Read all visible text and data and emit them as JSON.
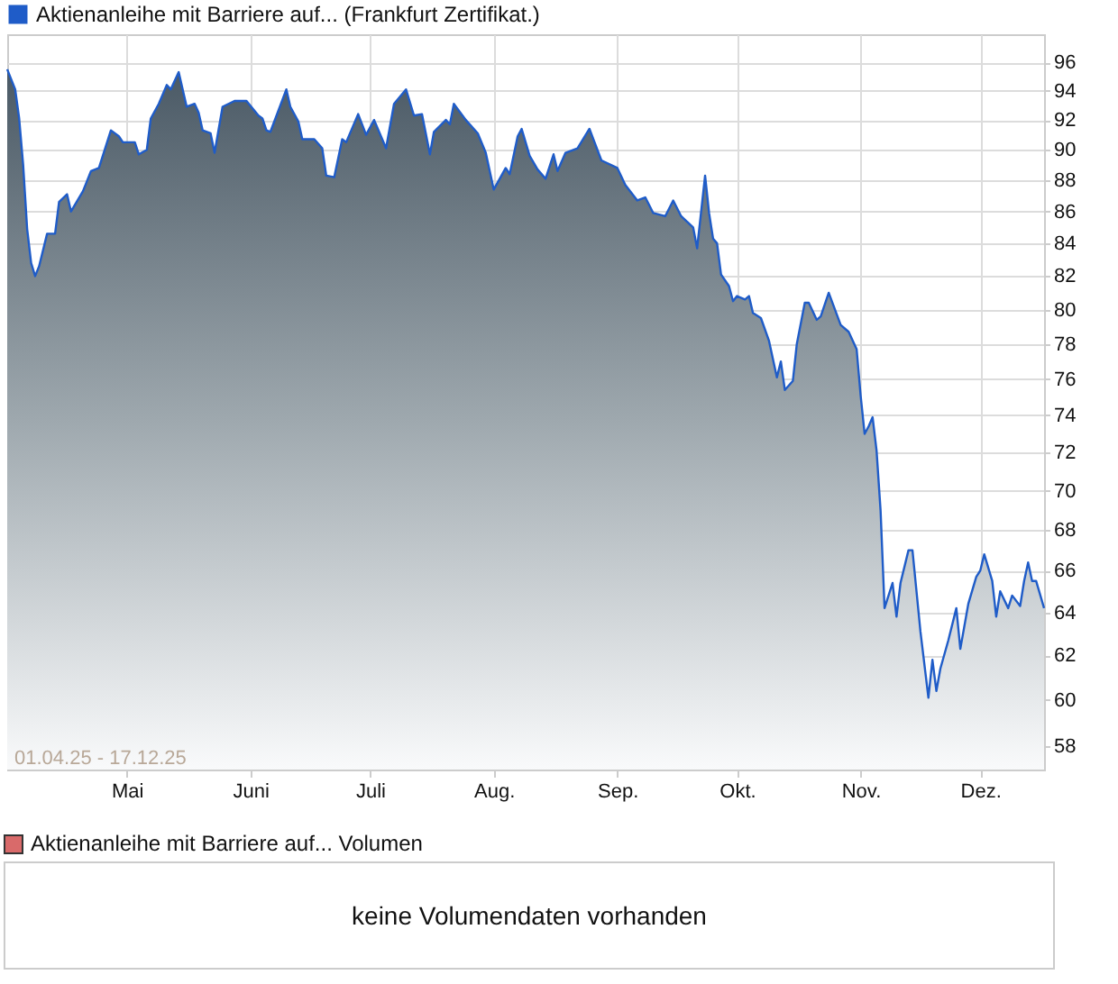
{
  "chart_data": [
    {
      "type": "area",
      "x": [
        "--04-01",
        "--04-03",
        "--04-04",
        "--04-05",
        "--04-06",
        "--04-07",
        "--04-08",
        "--04-09",
        "--04-11",
        "--04-13",
        "--04-14",
        "--04-16",
        "--04-17",
        "--04-20",
        "--04-22",
        "--04-24",
        "--04-27",
        "--04-29",
        "--04-30",
        "--05-03",
        "--05-04",
        "--05-06",
        "--05-07",
        "--05-09",
        "--05-11",
        "--05-12",
        "--05-14",
        "--05-16",
        "--05-18",
        "--05-19",
        "--05-20",
        "--05-22",
        "--05-23",
        "--05-25",
        "--05-28",
        "--05-31",
        "--06-03",
        "--06-04",
        "--06-05",
        "--06-06",
        "--06-10",
        "--06-11",
        "--06-13",
        "--06-14",
        "--06-17",
        "--06-19",
        "--06-20",
        "--06-22",
        "--06-24",
        "--06-25",
        "--06-28",
        "--06-30",
        "--07-02",
        "--07-05",
        "--07-07",
        "--07-10",
        "--07-12",
        "--07-14",
        "--07-16",
        "--07-17",
        "--07-20",
        "--07-21",
        "--07-22",
        "--07-25",
        "--07-28",
        "--07-30",
        "--08-01",
        "--08-04",
        "--08-05",
        "--08-07",
        "--08-08",
        "--08-10",
        "--08-12",
        "--08-14",
        "--08-16",
        "--08-17",
        "--08-19",
        "--08-22",
        "--08-25",
        "--08-26",
        "--08-28",
        "--09-01",
        "--09-03",
        "--09-06",
        "--09-08",
        "--09-10",
        "--09-13",
        "--09-15",
        "--09-17",
        "--09-20",
        "--09-21",
        "--09-23",
        "--09-24",
        "--09-25",
        "--09-26",
        "--09-27",
        "--09-29",
        "--09-30",
        "--10-01",
        "--10-03",
        "--10-04",
        "--10-05",
        "--10-07",
        "--10-09",
        "--10-11",
        "--10-12",
        "--10-13",
        "--10-15",
        "--10-16",
        "--10-18",
        "--10-19",
        "--10-21",
        "--10-22",
        "--10-24",
        "--10-27",
        "--10-29",
        "--10-31",
        "--11-01",
        "--11-02",
        "--11-03",
        "--11-04",
        "--11-05",
        "--11-06",
        "--11-07",
        "--11-08",
        "--11-09",
        "--11-10",
        "--11-11",
        "--11-13",
        "--11-14",
        "--11-16",
        "--11-18",
        "--11-19",
        "--11-20",
        "--11-21",
        "--11-23",
        "--11-25",
        "--11-26",
        "--11-28",
        "--11-30",
        "--12-01",
        "--12-02",
        "--12-04",
        "--12-05",
        "--12-06",
        "--12-08",
        "--12-09",
        "--12-11",
        "--12-12",
        "--12-13",
        "--12-14",
        "--12-15",
        "--12-17"
      ],
      "series": [
        {
          "name": "Aktienanleihe mit Barriere auf... (Frankfurt Zertifikat.)",
          "color": "#1f5cc8",
          "values": [
            95.5,
            94.1,
            92.1,
            89.0,
            84.9,
            82.8,
            82.0,
            82.6,
            84.6,
            84.6,
            86.6,
            87.1,
            86.0,
            87.3,
            88.6,
            88.8,
            91.3,
            90.9,
            90.5,
            90.5,
            89.7,
            90.0,
            92.1,
            93.1,
            94.4,
            94.1,
            95.3,
            92.9,
            93.1,
            92.5,
            91.3,
            91.1,
            89.8,
            92.9,
            93.3,
            93.3,
            92.3,
            92.1,
            91.3,
            91.2,
            94.1,
            92.9,
            91.9,
            90.7,
            90.7,
            90.1,
            88.3,
            88.2,
            90.7,
            90.5,
            92.4,
            91.0,
            92.0,
            90.1,
            93.1,
            94.1,
            92.3,
            92.4,
            89.7,
            91.2,
            92.0,
            91.7,
            93.1,
            92.0,
            91.1,
            89.8,
            87.4,
            88.8,
            88.4,
            90.9,
            91.4,
            89.6,
            88.7,
            88.1,
            89.7,
            88.6,
            89.8,
            90.1,
            91.4,
            90.7,
            89.3,
            88.8,
            87.7,
            86.7,
            86.9,
            85.9,
            85.7,
            86.7,
            85.7,
            85.0,
            83.7,
            88.3,
            85.9,
            84.3,
            84.0,
            82.1,
            81.4,
            80.5,
            80.8,
            80.6,
            80.8,
            79.8,
            79.5,
            78.2,
            76.1,
            77.0,
            75.4,
            75.9,
            78.0,
            80.4,
            80.4,
            79.4,
            79.6,
            81.0,
            79.1,
            78.7,
            77.7,
            75.1,
            73.0,
            73.4,
            73.9,
            72.1,
            69.0,
            64.2,
            64.8,
            65.4,
            63.8,
            65.4,
            67.0,
            67.0,
            63.1,
            60.1,
            61.8,
            60.4,
            61.4,
            62.7,
            64.2,
            62.3,
            64.4,
            65.7,
            66.0,
            66.8,
            65.5,
            63.8,
            65.0,
            64.2,
            64.8,
            64.3,
            65.5,
            66.4,
            65.5,
            65.5,
            64.2
          ]
        }
      ],
      "xlim": [
        "--04-01",
        "--12-17"
      ],
      "xticks": [
        {
          "value": "--05-01",
          "label": "Mai"
        },
        {
          "value": "--06-01",
          "label": "Juni"
        },
        {
          "value": "--07-01",
          "label": "Juli"
        },
        {
          "value": "--08-01",
          "label": "Aug."
        },
        {
          "value": "--09-01",
          "label": "Sep."
        },
        {
          "value": "--10-01",
          "label": "Okt."
        },
        {
          "value": "--11-01",
          "label": "Nov."
        },
        {
          "value": "--12-01",
          "label": "Dez."
        }
      ],
      "ylim": [
        57,
        98
      ],
      "yticks": [
        58,
        60,
        62,
        64,
        66,
        68,
        70,
        72,
        74,
        76,
        78,
        80,
        82,
        84,
        86,
        88,
        90,
        92,
        94,
        96
      ],
      "log": true,
      "grid": true,
      "legend": "top left",
      "annotations": [
        "01.04.25 - 17.12.25"
      ]
    },
    {
      "type": "other",
      "title": "Aktienanleihe mit Barriere auf... Volumen",
      "annotations": [
        "keine Volumendaten vorhanden"
      ]
    }
  ]
}
